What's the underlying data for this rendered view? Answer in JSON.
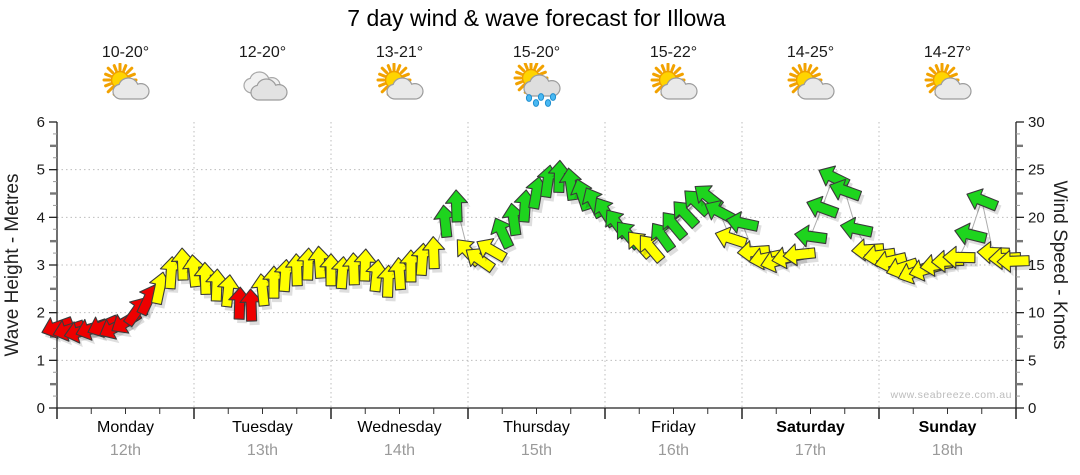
{
  "title": "7 day wind & wave forecast for Illowa",
  "watermark": "www.seabreeze.com.au",
  "axes": {
    "left_title": "Wave Height - Metres",
    "right_title": "Wind Speed - Knots"
  },
  "days": [
    {
      "name": "Monday",
      "date": "12th",
      "temp": "10-20°",
      "icon": "sun-cloud",
      "bold": false
    },
    {
      "name": "Tuesday",
      "date": "13th",
      "temp": "12-20°",
      "icon": "clouds",
      "bold": false
    },
    {
      "name": "Wednesday",
      "date": "14th",
      "temp": "13-21°",
      "icon": "sun-cloud",
      "bold": false
    },
    {
      "name": "Thursday",
      "date": "15th",
      "temp": "15-20°",
      "icon": "sun-cloud-rain",
      "bold": false
    },
    {
      "name": "Friday",
      "date": "16th",
      "temp": "15-22°",
      "icon": "sun-cloud",
      "bold": false
    },
    {
      "name": "Saturday",
      "date": "17th",
      "temp": "14-25°",
      "icon": "sun-cloud",
      "bold": true
    },
    {
      "name": "Sunday",
      "date": "18th",
      "temp": "14-27°",
      "icon": "sun-cloud",
      "bold": true
    }
  ],
  "chart_data": {
    "type": "line",
    "subtype": "wind-direction-arrows",
    "title": "7 day wind & wave forecast for Illowa",
    "x_categories": [
      "Monday 12th",
      "Tuesday 13th",
      "Wednesday 14th",
      "Thursday 15th",
      "Friday 16th",
      "Saturday 17th",
      "Sunday 18th"
    ],
    "y_left": {
      "label": "Wave Height - Metres",
      "ticks": [
        0,
        1,
        2,
        3,
        4,
        5,
        6
      ],
      "range": [
        0,
        6
      ]
    },
    "y_right": {
      "label": "Wind Speed - Knots",
      "ticks": [
        0,
        5,
        10,
        15,
        20,
        25,
        30
      ],
      "range": [
        0,
        30
      ]
    },
    "grid": "dotted",
    "interval_hours": 2,
    "point_format": [
      "knots",
      "arrow_angle_deg_0up_clockwise"
    ],
    "wind": {
      "colors": {
        "red": "#ee0000",
        "yellow": "#ffff00",
        "green": "#1ed41e"
      },
      "thresholds_knots": {
        "red_below": 12,
        "yellow_below": 18
      },
      "outline": "#3a3a3a",
      "connector": "#adadad"
    },
    "series": [
      {
        "name": "Wind speed & direction",
        "unit": "knots",
        "points": [
          [
            8.5,
            250
          ],
          [
            8.2,
            252
          ],
          [
            8.0,
            255
          ],
          [
            8.3,
            251
          ],
          [
            8.6,
            247
          ],
          [
            8.4,
            243
          ],
          [
            9.0,
            238
          ],
          [
            10.2,
            35
          ],
          [
            11.4,
            25
          ],
          [
            12.6,
            12
          ],
          [
            14.2,
            4
          ],
          [
            15.1,
            358
          ],
          [
            14.4,
            354
          ],
          [
            13.6,
            358
          ],
          [
            12.9,
            2
          ],
          [
            12.3,
            6
          ],
          [
            11.0,
            2
          ],
          [
            10.8,
            358
          ],
          [
            12.4,
            354
          ],
          [
            13.2,
            0
          ],
          [
            13.9,
            4
          ],
          [
            14.5,
            358
          ],
          [
            15.1,
            2
          ],
          [
            15.3,
            356
          ],
          [
            14.5,
            0
          ],
          [
            14.2,
            4
          ],
          [
            14.6,
            358
          ],
          [
            15.0,
            2
          ],
          [
            13.9,
            6
          ],
          [
            13.3,
            2
          ],
          [
            14.1,
            356
          ],
          [
            14.9,
            0
          ],
          [
            15.6,
            4
          ],
          [
            16.3,
            358
          ],
          [
            19.6,
            354
          ],
          [
            21.2,
            358
          ],
          [
            16.4,
            318
          ],
          [
            15.6,
            305
          ],
          [
            16.6,
            300
          ],
          [
            18.4,
            335
          ],
          [
            19.8,
            352
          ],
          [
            21.2,
            4
          ],
          [
            22.6,
            10
          ],
          [
            23.8,
            8
          ],
          [
            24.3,
            2
          ],
          [
            23.5,
            352
          ],
          [
            22.4,
            342
          ],
          [
            21.6,
            333
          ],
          [
            20.6,
            328
          ],
          [
            19.4,
            324
          ],
          [
            18.2,
            320
          ],
          [
            17.2,
            318
          ],
          [
            16.8,
            320
          ],
          [
            18.0,
            324
          ],
          [
            19.2,
            320
          ],
          [
            20.4,
            317
          ],
          [
            21.6,
            314
          ],
          [
            22.2,
            308
          ],
          [
            20.6,
            298
          ],
          [
            17.8,
            288
          ],
          [
            19.4,
            282
          ],
          [
            16.4,
            266
          ],
          [
            15.7,
            258
          ],
          [
            15.4,
            254
          ],
          [
            15.8,
            258
          ],
          [
            16.1,
            264
          ],
          [
            18.0,
            278
          ],
          [
            21.0,
            290
          ],
          [
            24.2,
            296
          ],
          [
            22.8,
            290
          ],
          [
            18.8,
            282
          ],
          [
            16.6,
            266
          ],
          [
            16.0,
            262
          ],
          [
            15.4,
            257
          ],
          [
            14.7,
            252
          ],
          [
            14.2,
            249
          ],
          [
            14.5,
            254
          ],
          [
            15.0,
            261
          ],
          [
            15.4,
            267
          ],
          [
            15.8,
            271
          ],
          [
            18.2,
            284
          ],
          [
            21.8,
            292
          ],
          [
            16.3,
            272
          ],
          [
            15.7,
            267
          ],
          [
            15.4,
            268
          ]
        ]
      }
    ]
  }
}
